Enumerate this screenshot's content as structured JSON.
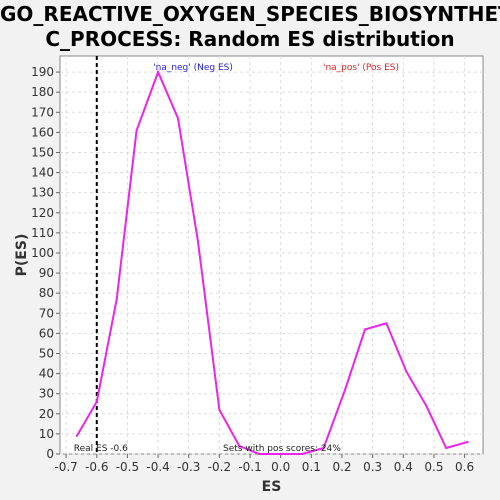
{
  "chart_data": {
    "type": "line",
    "title_line1": "GO_REACTIVE_OXYGEN_SPECIES_BIOSYNTHETI",
    "title_line2": "C_PROCESS: Random ES distribution",
    "xlabel": "ES",
    "ylabel": "P(ES)",
    "xlim": [
      -0.72,
      0.66
    ],
    "ylim": [
      0,
      198
    ],
    "x_ticks": [
      "-0.7",
      "-0.6",
      "-0.5",
      "-0.4",
      "-0.3",
      "-0.2",
      "-0.1",
      "0.0",
      "0.1",
      "0.2",
      "0.3",
      "0.4",
      "0.5",
      "0.6"
    ],
    "x_tick_values": [
      -0.7,
      -0.6,
      -0.5,
      -0.4,
      -0.3,
      -0.2,
      -0.1,
      0.0,
      0.1,
      0.2,
      0.3,
      0.4,
      0.5,
      0.6
    ],
    "y_tick_values": [
      0,
      10,
      20,
      30,
      40,
      50,
      60,
      70,
      80,
      90,
      100,
      110,
      120,
      130,
      140,
      150,
      160,
      170,
      180,
      190
    ],
    "grid": true,
    "series": [
      {
        "color": "#ee22ee",
        "x": [
          -0.665,
          -0.6,
          -0.535,
          -0.47,
          -0.4,
          -0.335,
          -0.27,
          -0.2,
          -0.135,
          -0.07,
          0.0,
          0.07,
          0.14,
          0.21,
          0.275,
          0.345,
          0.41,
          0.475,
          0.54,
          0.61
        ],
        "y": [
          9,
          26,
          77,
          161,
          190,
          167,
          106,
          22,
          4,
          0,
          0,
          0,
          3,
          32,
          62,
          65,
          41,
          24,
          3,
          6
        ]
      }
    ],
    "real_es": -0.6,
    "real_es_label": "Real ES -0.6",
    "pos_scores_label": "Sets with pos scores: 24%",
    "legend_neg": "'na_neg' (Neg ES)",
    "legend_pos": "'na_pos' (Pos ES)",
    "legend_neg_color": "#2222dd",
    "legend_pos_color": "#dd2222"
  }
}
